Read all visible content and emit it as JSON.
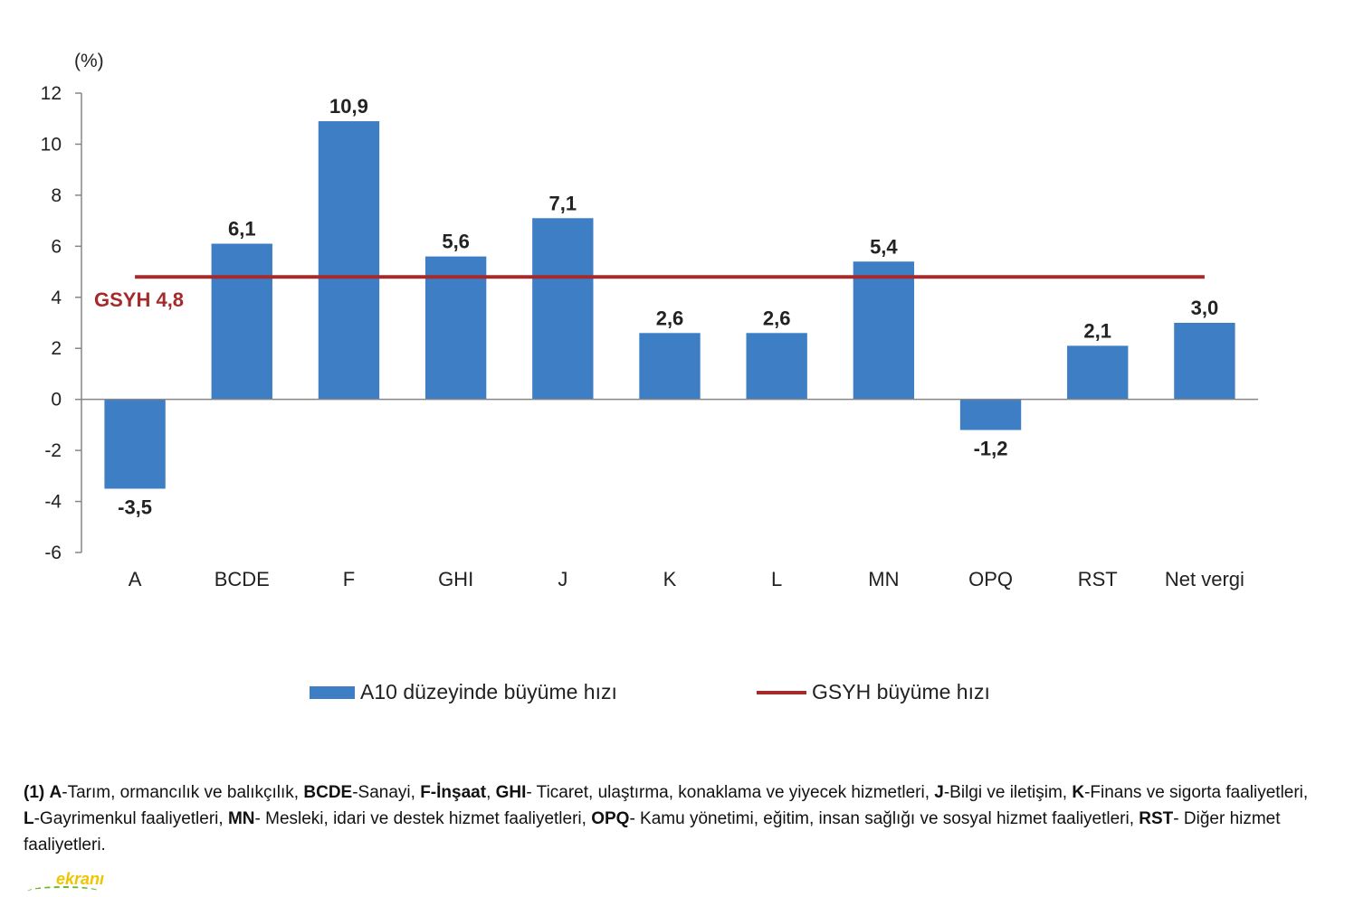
{
  "chart_data": {
    "type": "bar",
    "unit_label": "(%)",
    "categories": [
      "A",
      "BCDE",
      "F",
      "GHI",
      "J",
      "K",
      "L",
      "MN",
      "OPQ",
      "RST",
      "Net vergi"
    ],
    "series": [
      {
        "name": "A10 düzeyinde büyüme hızı",
        "type": "bar",
        "color": "#3d7ec4",
        "values": [
          -3.5,
          6.1,
          10.9,
          5.6,
          7.1,
          2.6,
          2.6,
          5.4,
          -1.2,
          2.1,
          3.0
        ],
        "labels": [
          "-3,5",
          "6,1",
          "10,9",
          "5,6",
          "7,1",
          "2,6",
          "2,6",
          "5,4",
          "-1,2",
          "2,1",
          "3,0"
        ]
      },
      {
        "name": "GSYH büyüme hızı",
        "type": "line",
        "color": "#a52a2a",
        "value": 4.8
      }
    ],
    "reference_label": "GSYH 4,8",
    "ylim": [
      -6,
      12
    ],
    "yticks": [
      12,
      10,
      8,
      6,
      4,
      2,
      0,
      -2,
      -4,
      -6
    ],
    "legend_position": "bottom",
    "grid": false
  },
  "legend": {
    "bar_label": "A10 düzeyinde büyüme hızı",
    "line_label": "GSYH büyüme hızı"
  },
  "footnote": {
    "n": "(1)",
    "k1": "A",
    "t1": "-Tarım, ormancılık ve balıkçılık, ",
    "k2": "BCDE",
    "t2": "-Sanayi, ",
    "k3": "F-İnşaat",
    "t3": ", ",
    "k4": "GHI",
    "t4": "- Ticaret, ulaştırma, konaklama ve yiyecek hizmetleri, ",
    "k5": "J",
    "t5": "-Bilgi ve iletişim, ",
    "k6": "K",
    "t6": "-Finans ve sigorta faaliyetleri, ",
    "k7": "L",
    "t7": "-Gayrimenkul faaliyetleri, ",
    "k8": "MN",
    "t8": "- Mesleki, idari ve destek hizmet faaliyetleri, ",
    "k9": "OPQ",
    "t9": "- Kamu yönetimi, eğitim, insan sağlığı ve sosyal hizmet faaliyetleri, ",
    "k10": "RST",
    "t10": "- Diğer hizmet faaliyetleri."
  },
  "watermark": "ekranı"
}
